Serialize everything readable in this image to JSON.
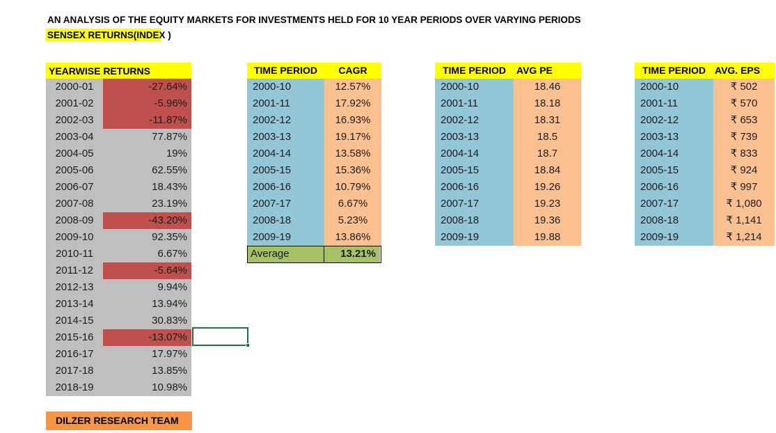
{
  "title": "AN ANALYSIS OF THE EQUITY MARKETS FOR INVESTMENTS HELD FOR 10 YEAR PERIODS OVER VARYING PERIODS",
  "subtitle": "SENSEX RETURNS(INDEX )",
  "footer": "DILZER RESEARCH TEAM",
  "colors": {
    "header_yellow": "#FFFF00",
    "cell_grey": "#BFBFBF",
    "negative_red": "#C0504D",
    "period_blue": "#93C6D6",
    "value_peach": "#FAC090",
    "average_green": "#A7C266",
    "footer_orange": "#F79646",
    "selection_green": "#1E7145"
  },
  "yearwise": {
    "header": "YEARWISE RETURNS",
    "rows": [
      {
        "label": "2000-01",
        "value": "-27.64%",
        "negative": true
      },
      {
        "label": "2001-02",
        "value": "-5.96%",
        "negative": true
      },
      {
        "label": "2002-03",
        "value": "-11.87%",
        "negative": true
      },
      {
        "label": "2003-04",
        "value": "77.87%",
        "negative": false
      },
      {
        "label": "2004-05",
        "value": "19%",
        "negative": false
      },
      {
        "label": "2005-06",
        "value": "62.55%",
        "negative": false
      },
      {
        "label": "2006-07",
        "value": "18.43%",
        "negative": false
      },
      {
        "label": "2007-08",
        "value": "23.19%",
        "negative": false
      },
      {
        "label": "2008-09",
        "value": "-43.20%",
        "negative": true
      },
      {
        "label": "2009-10",
        "value": "92.35%",
        "negative": false
      },
      {
        "label": "2010-11",
        "value": "6.67%",
        "negative": false
      },
      {
        "label": "2011-12",
        "value": "-5.64%",
        "negative": true
      },
      {
        "label": "2012-13",
        "value": "9.94%",
        "negative": false
      },
      {
        "label": "2013-14",
        "value": "13.94%",
        "negative": false
      },
      {
        "label": "2014-15",
        "value": "30.83%",
        "negative": false
      },
      {
        "label": "2015-16",
        "value": "-13.07%",
        "negative": true
      },
      {
        "label": "2016-17",
        "value": "17.97%",
        "negative": false
      },
      {
        "label": "2017-18",
        "value": "13.85%",
        "negative": false
      },
      {
        "label": "2018-19",
        "value": "10.98%",
        "negative": false
      }
    ]
  },
  "cagr": {
    "header_period": "TIME PERIOD",
    "header_value": "CAGR",
    "rows": [
      {
        "label": "2000-10",
        "value": "12.57%"
      },
      {
        "label": "2001-11",
        "value": "17.92%"
      },
      {
        "label": "2002-12",
        "value": "16.93%"
      },
      {
        "label": "2003-13",
        "value": "19.17%"
      },
      {
        "label": "2004-14",
        "value": "13.58%"
      },
      {
        "label": "2005-15",
        "value": "15.36%"
      },
      {
        "label": "2006-16",
        "value": "10.79%"
      },
      {
        "label": "2007-17",
        "value": "6.67%"
      },
      {
        "label": "2008-18",
        "value": "5.23%"
      },
      {
        "label": "2009-19",
        "value": "13.86%"
      }
    ],
    "average_label": "Average",
    "average_value": "13.21%"
  },
  "avg_pe": {
    "header_period": "TIME PERIOD",
    "header_value": "AVG PE",
    "rows": [
      {
        "label": "2000-10",
        "value": "18.46"
      },
      {
        "label": "2001-11",
        "value": "18.18"
      },
      {
        "label": "2002-12",
        "value": "18.31"
      },
      {
        "label": "2003-13",
        "value": "18.5"
      },
      {
        "label": "2004-14",
        "value": "18.7"
      },
      {
        "label": "2005-15",
        "value": "18.84"
      },
      {
        "label": "2006-16",
        "value": "19.26"
      },
      {
        "label": "2007-17",
        "value": "19.23"
      },
      {
        "label": "2008-18",
        "value": "19.36"
      },
      {
        "label": "2009-19",
        "value": "19.88"
      }
    ]
  },
  "avg_eps": {
    "header_period": "TIME PERIOD",
    "header_value": "AVG. EPS",
    "rows": [
      {
        "label": "2000-10",
        "value": "₹ 502"
      },
      {
        "label": "2001-11",
        "value": "₹ 570"
      },
      {
        "label": "2002-12",
        "value": "₹ 653"
      },
      {
        "label": "2003-13",
        "value": "₹ 739"
      },
      {
        "label": "2004-14",
        "value": "₹ 833"
      },
      {
        "label": "2005-15",
        "value": "₹ 924"
      },
      {
        "label": "2006-16",
        "value": "₹ 997"
      },
      {
        "label": "2007-17",
        "value": "₹ 1,080"
      },
      {
        "label": "2008-18",
        "value": "₹ 1,141"
      },
      {
        "label": "2009-19",
        "value": "₹ 1,214"
      }
    ]
  }
}
